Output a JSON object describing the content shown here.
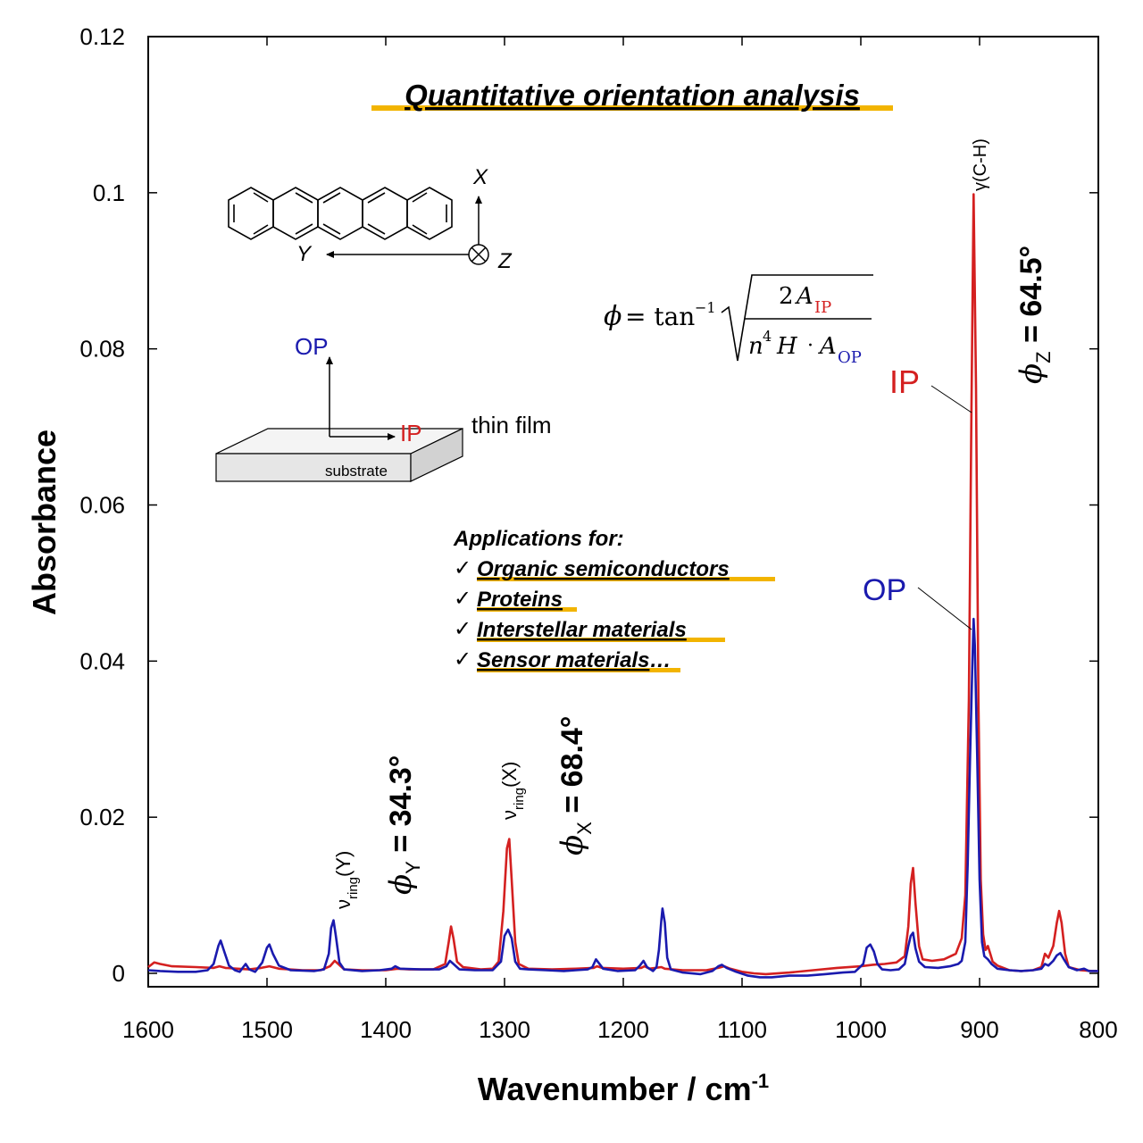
{
  "chart_data": {
    "type": "line",
    "title": "Quantitative orientation analysis",
    "xlabel": "Wavenumber / cm",
    "xlabel_sup": "-1",
    "ylabel": "Absorbance",
    "xlim": [
      1600,
      800
    ],
    "ylim": [
      -0.002,
      0.12
    ],
    "x_ticks": [
      1600,
      1500,
      1400,
      1300,
      1200,
      1100,
      1000,
      900,
      800
    ],
    "y_ticks": [
      0,
      0.02,
      0.04,
      0.06,
      0.08,
      0.1,
      0.12
    ],
    "y_tick_labels": [
      "0",
      "0.02",
      "0.04",
      "0.06",
      "0.08",
      "0.1",
      "0.12"
    ],
    "grid": false,
    "colors": {
      "IP": "#d42020",
      "OP": "#1a1aae",
      "highlight": "#f2b400",
      "axis": "#000000"
    },
    "series": [
      {
        "name": "IP",
        "points": [
          [
            1600,
            0.0008
          ],
          [
            1595,
            0.0014
          ],
          [
            1590,
            0.0012
          ],
          [
            1580,
            0.0009
          ],
          [
            1560,
            0.0008
          ],
          [
            1545,
            0.0007
          ],
          [
            1540,
            0.0009
          ],
          [
            1535,
            0.0007
          ],
          [
            1525,
            0.0006
          ],
          [
            1515,
            0.0005
          ],
          [
            1505,
            0.0007
          ],
          [
            1498,
            0.0009
          ],
          [
            1490,
            0.0006
          ],
          [
            1470,
            0.0004
          ],
          [
            1455,
            0.0004
          ],
          [
            1447,
            0.0009
          ],
          [
            1443,
            0.0016
          ],
          [
            1440,
            0.0012
          ],
          [
            1435,
            0.0005
          ],
          [
            1420,
            0.0004
          ],
          [
            1400,
            0.0004
          ],
          [
            1390,
            0.0006
          ],
          [
            1380,
            0.0005
          ],
          [
            1360,
            0.0005
          ],
          [
            1350,
            0.0012
          ],
          [
            1347,
            0.004
          ],
          [
            1345,
            0.006
          ],
          [
            1343,
            0.0045
          ],
          [
            1340,
            0.0015
          ],
          [
            1335,
            0.0008
          ],
          [
            1320,
            0.0005
          ],
          [
            1310,
            0.0006
          ],
          [
            1305,
            0.0015
          ],
          [
            1301,
            0.008
          ],
          [
            1298,
            0.016
          ],
          [
            1296,
            0.0172
          ],
          [
            1294,
            0.012
          ],
          [
            1291,
            0.004
          ],
          [
            1288,
            0.0012
          ],
          [
            1280,
            0.0006
          ],
          [
            1260,
            0.0005
          ],
          [
            1240,
            0.0006
          ],
          [
            1225,
            0.0007
          ],
          [
            1222,
            0.0009
          ],
          [
            1218,
            0.0007
          ],
          [
            1200,
            0.0006
          ],
          [
            1185,
            0.0007
          ],
          [
            1182,
            0.0009
          ],
          [
            1178,
            0.0006
          ],
          [
            1168,
            0.0008
          ],
          [
            1165,
            0.0006
          ],
          [
            1150,
            0.0004
          ],
          [
            1130,
            0.0004
          ],
          [
            1120,
            0.0007
          ],
          [
            1115,
            0.0009
          ],
          [
            1110,
            0.0006
          ],
          [
            1100,
            0.0002
          ],
          [
            1090,
            0.0
          ],
          [
            1080,
            -0.0001
          ],
          [
            1060,
            0.0001
          ],
          [
            1040,
            0.0004
          ],
          [
            1020,
            0.0007
          ],
          [
            1000,
            0.0009
          ],
          [
            990,
            0.0011
          ],
          [
            980,
            0.0012
          ],
          [
            970,
            0.0014
          ],
          [
            963,
            0.0022
          ],
          [
            960,
            0.006
          ],
          [
            958,
            0.0115
          ],
          [
            956,
            0.0135
          ],
          [
            954,
            0.009
          ],
          [
            951,
            0.0035
          ],
          [
            948,
            0.0018
          ],
          [
            940,
            0.0016
          ],
          [
            930,
            0.0018
          ],
          [
            920,
            0.0025
          ],
          [
            915,
            0.0045
          ],
          [
            912,
            0.01
          ],
          [
            909,
            0.035
          ],
          [
            907,
            0.07
          ],
          [
            905,
            0.0998
          ],
          [
            903,
            0.075
          ],
          [
            901,
            0.035
          ],
          [
            899,
            0.012
          ],
          [
            897,
            0.005
          ],
          [
            895,
            0.003
          ],
          [
            893,
            0.0035
          ],
          [
            891,
            0.0025
          ],
          [
            889,
            0.0015
          ],
          [
            885,
            0.001
          ],
          [
            875,
            0.0004
          ],
          [
            865,
            0.0003
          ],
          [
            855,
            0.0004
          ],
          [
            848,
            0.0008
          ],
          [
            845,
            0.0025
          ],
          [
            842,
            0.002
          ],
          [
            838,
            0.0035
          ],
          [
            835,
            0.0065
          ],
          [
            833,
            0.008
          ],
          [
            831,
            0.0065
          ],
          [
            828,
            0.0025
          ],
          [
            825,
            0.0008
          ],
          [
            815,
            0.0004
          ],
          [
            805,
            0.0003
          ],
          [
            800,
            0.0003
          ]
        ]
      },
      {
        "name": "OP",
        "points": [
          [
            1600,
            0.0004
          ],
          [
            1590,
            0.0003
          ],
          [
            1575,
            0.0002
          ],
          [
            1560,
            0.0002
          ],
          [
            1550,
            0.0004
          ],
          [
            1545,
            0.0012
          ],
          [
            1541,
            0.0035
          ],
          [
            1539,
            0.0042
          ],
          [
            1536,
            0.0028
          ],
          [
            1532,
            0.001
          ],
          [
            1527,
            0.0004
          ],
          [
            1523,
            0.0002
          ],
          [
            1520,
            0.0008
          ],
          [
            1518,
            0.0012
          ],
          [
            1515,
            0.0005
          ],
          [
            1510,
            0.0002
          ],
          [
            1504,
            0.0014
          ],
          [
            1500,
            0.0033
          ],
          [
            1498,
            0.0037
          ],
          [
            1495,
            0.0025
          ],
          [
            1490,
            0.001
          ],
          [
            1480,
            0.0004
          ],
          [
            1460,
            0.0003
          ],
          [
            1452,
            0.0005
          ],
          [
            1448,
            0.0025
          ],
          [
            1446,
            0.0058
          ],
          [
            1444,
            0.0068
          ],
          [
            1442,
            0.0048
          ],
          [
            1439,
            0.0014
          ],
          [
            1435,
            0.0005
          ],
          [
            1420,
            0.0003
          ],
          [
            1405,
            0.0004
          ],
          [
            1395,
            0.0006
          ],
          [
            1392,
            0.0009
          ],
          [
            1388,
            0.0006
          ],
          [
            1370,
            0.0005
          ],
          [
            1355,
            0.0005
          ],
          [
            1349,
            0.0009
          ],
          [
            1346,
            0.0016
          ],
          [
            1343,
            0.0012
          ],
          [
            1338,
            0.0005
          ],
          [
            1325,
            0.0004
          ],
          [
            1310,
            0.0004
          ],
          [
            1303,
            0.0015
          ],
          [
            1300,
            0.0048
          ],
          [
            1297,
            0.0056
          ],
          [
            1294,
            0.0045
          ],
          [
            1291,
            0.0015
          ],
          [
            1287,
            0.0006
          ],
          [
            1280,
            0.0005
          ],
          [
            1265,
            0.0004
          ],
          [
            1250,
            0.0003
          ],
          [
            1240,
            0.0004
          ],
          [
            1230,
            0.0005
          ],
          [
            1226,
            0.0008
          ],
          [
            1223,
            0.0018
          ],
          [
            1221,
            0.0014
          ],
          [
            1217,
            0.0006
          ],
          [
            1205,
            0.0003
          ],
          [
            1190,
            0.0004
          ],
          [
            1186,
            0.001
          ],
          [
            1183,
            0.0016
          ],
          [
            1180,
            0.0008
          ],
          [
            1175,
            0.0003
          ],
          [
            1172,
            0.0008
          ],
          [
            1170,
            0.003
          ],
          [
            1168,
            0.0068
          ],
          [
            1167,
            0.0083
          ],
          [
            1165,
            0.0065
          ],
          [
            1163,
            0.002
          ],
          [
            1160,
            0.0005
          ],
          [
            1150,
            0.0001
          ],
          [
            1135,
            -0.0001
          ],
          [
            1125,
            0.0003
          ],
          [
            1120,
            0.0009
          ],
          [
            1117,
            0.0011
          ],
          [
            1113,
            0.0007
          ],
          [
            1105,
            0.0002
          ],
          [
            1095,
            -0.0003
          ],
          [
            1085,
            -0.0005
          ],
          [
            1075,
            -0.0005
          ],
          [
            1060,
            -0.0003
          ],
          [
            1045,
            -0.0003
          ],
          [
            1030,
            -0.0001
          ],
          [
            1015,
            0.0001
          ],
          [
            1005,
            0.0002
          ],
          [
            998,
            0.0012
          ],
          [
            995,
            0.0033
          ],
          [
            992,
            0.0037
          ],
          [
            989,
            0.0028
          ],
          [
            986,
            0.0012
          ],
          [
            982,
            0.0005
          ],
          [
            975,
            0.0004
          ],
          [
            968,
            0.0005
          ],
          [
            963,
            0.0012
          ],
          [
            960,
            0.0035
          ],
          [
            958,
            0.0048
          ],
          [
            956,
            0.0052
          ],
          [
            954,
            0.0032
          ],
          [
            951,
            0.0015
          ],
          [
            946,
            0.0008
          ],
          [
            935,
            0.0007
          ],
          [
            925,
            0.0009
          ],
          [
            918,
            0.0012
          ],
          [
            915,
            0.0016
          ],
          [
            912,
            0.004
          ],
          [
            910,
            0.014
          ],
          [
            908,
            0.028
          ],
          [
            906,
            0.04
          ],
          [
            905,
            0.0454
          ],
          [
            904,
            0.042
          ],
          [
            902,
            0.028
          ],
          [
            900,
            0.012
          ],
          [
            898,
            0.004
          ],
          [
            896,
            0.0022
          ],
          [
            893,
            0.0018
          ],
          [
            890,
            0.0012
          ],
          [
            885,
            0.0006
          ],
          [
            875,
            0.0004
          ],
          [
            865,
            0.0003
          ],
          [
            855,
            0.0004
          ],
          [
            848,
            0.0006
          ],
          [
            845,
            0.0012
          ],
          [
            842,
            0.001
          ],
          [
            838,
            0.0016
          ],
          [
            835,
            0.0023
          ],
          [
            832,
            0.0026
          ],
          [
            829,
            0.0018
          ],
          [
            825,
            0.0008
          ],
          [
            818,
            0.0004
          ],
          [
            812,
            0.0006
          ],
          [
            808,
            0.0003
          ],
          [
            800,
            0.0003
          ]
        ]
      }
    ]
  },
  "annotations": {
    "formula": {
      "phi": "ϕ",
      "equals_tan": "= tan",
      "inv": "−1",
      "two": "2",
      "A": "A",
      "IP": "IP",
      "n": "n",
      "four": "4",
      "H": "H",
      "dot": "·",
      "OP": "OP"
    },
    "molecule": {
      "axis_x": "X",
      "axis_y": "Y",
      "axis_z": "Z"
    },
    "film": {
      "op_label": "OP",
      "ip_label": "IP",
      "thin_film": "thin film",
      "substrate": "substrate"
    },
    "applications": {
      "heading": "Applications for:",
      "check": "✓",
      "items": [
        "Organic semiconductors",
        "Proteins",
        "Interstellar materials",
        "Sensor materials"
      ],
      "ellipsis": "…"
    },
    "curve_labels": {
      "ip": "IP",
      "op": "OP"
    },
    "band_y": {
      "nu": "ν",
      "sub": "ring",
      "axis": "(Y)"
    },
    "band_x": {
      "nu": "ν",
      "sub": "ring",
      "axis": "(X)"
    },
    "band_z": {
      "gamma": "γ",
      "text": "(C-H)"
    },
    "phi_y": {
      "phi": "ϕ",
      "sub": "Y",
      "value": " = 34.3°"
    },
    "phi_x": {
      "phi": "ϕ",
      "sub": "X",
      "value": " = 68.4°"
    },
    "phi_z": {
      "phi": "ϕ",
      "sub": "Z",
      "value": " = 64.5°"
    }
  }
}
